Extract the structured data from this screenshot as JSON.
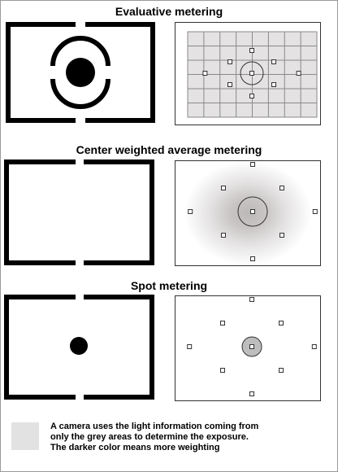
{
  "sections": [
    {
      "title": "Evaluative metering"
    },
    {
      "title": "Center weighted average metering"
    },
    {
      "title": "Spot metering"
    }
  ],
  "legend": {
    "lines": [
      "A camera uses the light information coming from",
      "only the grey areas to determine the exposure.",
      "The darker color means more weighting"
    ],
    "swatch_color": "#e2e2e2"
  },
  "colors": {
    "frame": "#000000",
    "panel_border": "#333333",
    "grid_fill": "#e4e2e2",
    "grid_line": "#8a8a8a",
    "spot_fill": "#bdbdbd",
    "center_weight_core": "#bcb8b8"
  }
}
